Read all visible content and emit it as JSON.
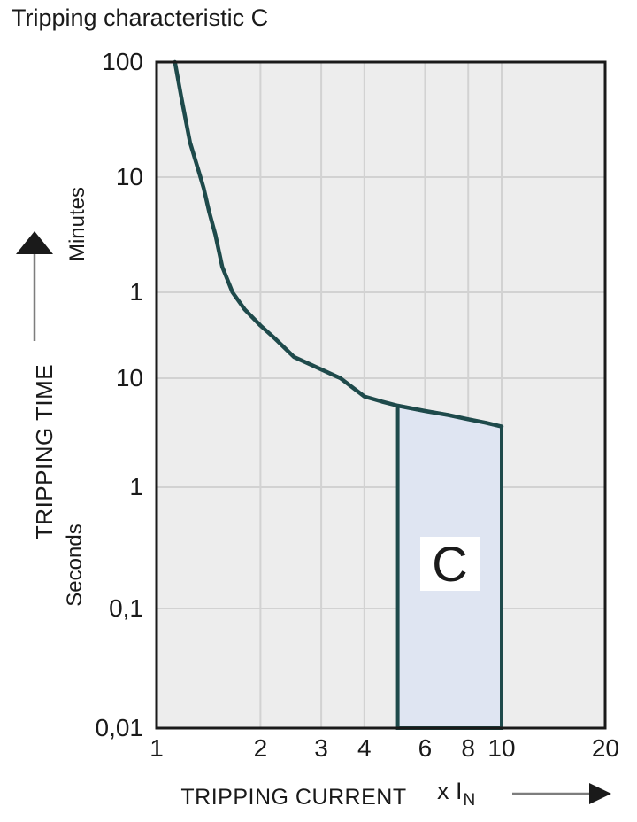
{
  "chart_data": {
    "type": "line",
    "title": "Tripping characteristic C",
    "x_axis": {
      "label": "TRIPPING CURRENT",
      "unit": {
        "text": "x I",
        "sub": "N"
      },
      "scale": "log",
      "range": [
        1,
        20
      ],
      "ticks": [
        {
          "label": "1",
          "v": 1
        },
        {
          "label": "2",
          "v": 2
        },
        {
          "label": "3",
          "v": 3
        },
        {
          "label": "4",
          "v": 4
        },
        {
          "label": "6",
          "v": 6
        },
        {
          "label": "8",
          "v": 8
        },
        {
          "label": "10",
          "v": 10
        },
        {
          "label": "20",
          "v": 20
        }
      ]
    },
    "y_axis": {
      "label": "TRIPPING TIME",
      "scale": "log",
      "unit_groups": [
        {
          "name": "Minutes",
          "ticks": [
            {
              "label": "100",
              "seconds": 6000
            },
            {
              "label": "10",
              "seconds": 600
            },
            {
              "label": "1",
              "seconds": 60
            }
          ]
        },
        {
          "name": "Seconds",
          "ticks": [
            {
              "label": "10",
              "seconds": 10
            },
            {
              "label": "1",
              "seconds": 1
            },
            {
              "label": "0,1",
              "seconds": 0.1
            },
            {
              "label": "0,01",
              "seconds": 0.01
            }
          ]
        }
      ]
    },
    "series": [
      {
        "name": "tripping-curve",
        "points": [
          [
            1.13,
            6000
          ],
          [
            1.18,
            2950
          ],
          [
            1.25,
            1200
          ],
          [
            1.32,
            700
          ],
          [
            1.37,
            480
          ],
          [
            1.42,
            300
          ],
          [
            1.48,
            190
          ],
          [
            1.55,
            100
          ],
          [
            1.66,
            60
          ],
          [
            1.8,
            42
          ],
          [
            2.0,
            30
          ],
          [
            2.2,
            23
          ],
          [
            2.5,
            15.6
          ],
          [
            3.0,
            12
          ],
          [
            3.41,
            10
          ],
          [
            4.0,
            6.8
          ],
          [
            4.5,
            6.1
          ],
          [
            5.0,
            5.6
          ],
          [
            6.0,
            5.0
          ],
          [
            7.0,
            4.6
          ],
          [
            8.0,
            4.2
          ],
          [
            9.0,
            3.9
          ],
          [
            10.0,
            3.6
          ]
        ]
      }
    ],
    "region": {
      "label": "C",
      "x_min": 5,
      "x_max": 10,
      "t_bottom": 0.01
    },
    "colors": {
      "curve": "#1e4a4b",
      "region_fill": "#dfe5f2",
      "plot_bg": "#ededed",
      "grid": "#d2d2d2",
      "border": "#1a1a1a",
      "arrow_line": "#7d7d7d",
      "arrow_head": "#1a1a1a",
      "text": "#1a1a1a"
    }
  }
}
